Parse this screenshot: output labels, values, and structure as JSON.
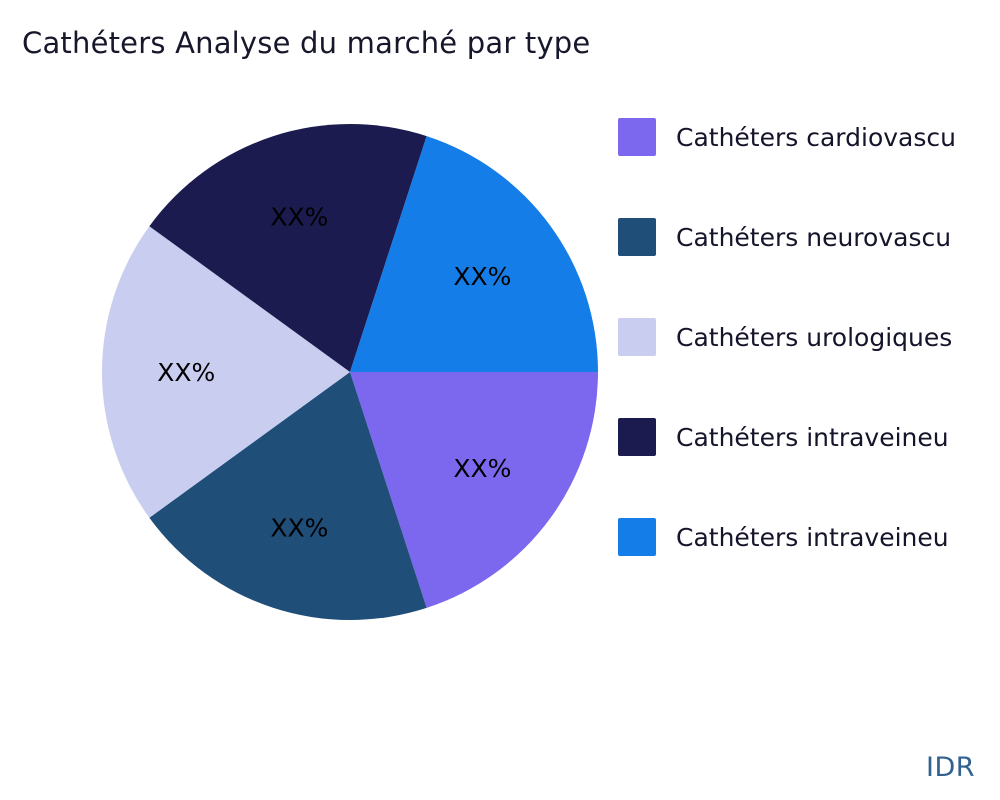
{
  "chart_data": {
    "type": "pie",
    "title": "Cathéters Analyse du marché par type",
    "legend_position": "right",
    "grid": false,
    "start_angle_deg": 0,
    "direction": "clockwise",
    "values_estimated": true,
    "slices": [
      {
        "legend_label": "Cathéters cardiovascu",
        "slice_label": "XX%",
        "value": 20,
        "color": "#7B68EE"
      },
      {
        "legend_label": "Cathéters neurovascu",
        "slice_label": "XX%",
        "value": 20,
        "color": "#1F4E79"
      },
      {
        "legend_label": "Cathéters urologiques",
        "slice_label": "XX%",
        "value": 20,
        "color": "#C9CDF0"
      },
      {
        "legend_label": "Cathéters intraveineu",
        "slice_label": "XX%",
        "value": 20,
        "color": "#1B1B4F"
      },
      {
        "legend_label": "Cathéters intraveineu",
        "slice_label": "XX%",
        "value": 20,
        "color": "#147DE8"
      }
    ]
  },
  "watermark": {
    "text": "IDR",
    "color": "#31618f"
  }
}
